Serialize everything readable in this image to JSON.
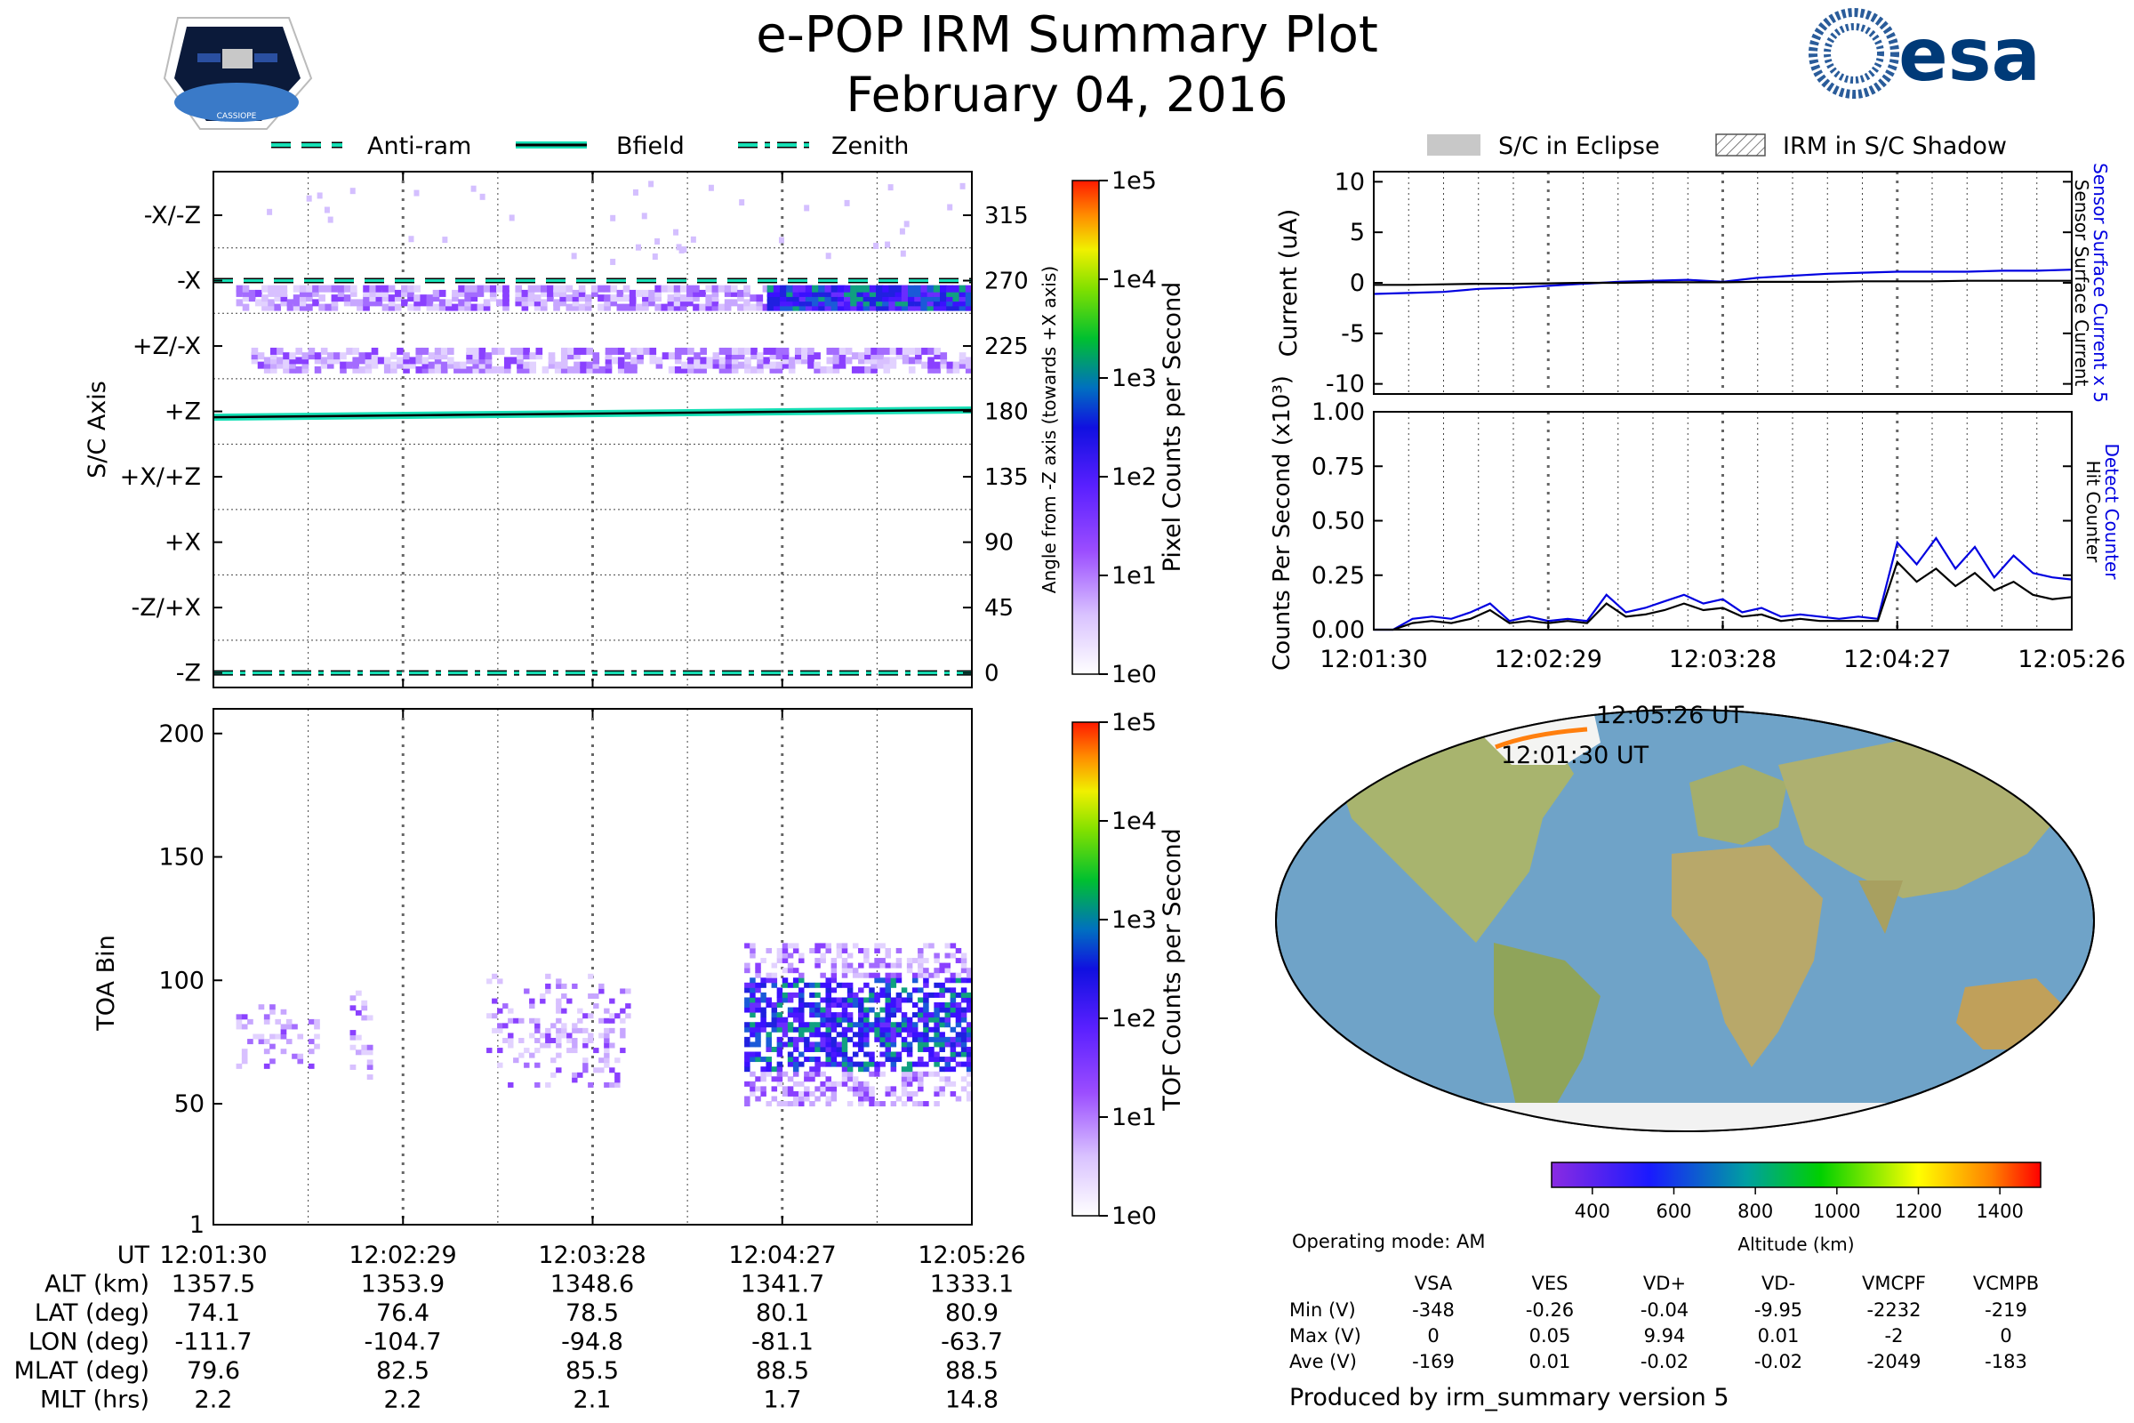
{
  "header": {
    "title": "e-POP IRM Summary Plot",
    "date": "February 04, 2016",
    "mission_badge_text": "CASSIOPE",
    "agency_logo_text": "esa"
  },
  "left_legend": [
    {
      "label": "Anti-ram",
      "style": "dashed"
    },
    {
      "label": "Bfield",
      "style": "solid"
    },
    {
      "label": "Zenith",
      "style": "dashdot"
    }
  ],
  "right_legend": [
    {
      "label": "S/C in Eclipse",
      "style": "filled-grey"
    },
    {
      "label": "IRM in S/C Shadow",
      "style": "hatched"
    }
  ],
  "colors": {
    "reference_line": "#17e0b6",
    "series_blue": "#0000e0",
    "series_black": "#000000",
    "ocean": "#6fa3c8",
    "land": "#9fb06a",
    "track": "#ff7f0e"
  },
  "time_axis": {
    "ticks": [
      "12:01:30",
      "12:02:29",
      "12:03:28",
      "12:04:27",
      "12:05:26"
    ]
  },
  "chart_data": [
    {
      "type": "heatmap",
      "id": "sc-axis",
      "ylabel": "S/C Axis",
      "y2label": "Angle from -Z axis (towards +X axis)",
      "ylim": [
        -10,
        345
      ],
      "y_axis_labels": [
        {
          "label": "-X/-Z",
          "angle": 315
        },
        {
          "label": "-X",
          "angle": 270
        },
        {
          "label": "+Z/-X",
          "angle": 225
        },
        {
          "label": "+Z",
          "angle": 180
        },
        {
          "label": "+X/+Z",
          "angle": 135
        },
        {
          "label": "+X",
          "angle": 90
        },
        {
          "label": "-Z/+X",
          "angle": 45
        },
        {
          "label": "-Z",
          "angle": 0
        }
      ],
      "y2_ticks": [
        315,
        270,
        225,
        180,
        135,
        90,
        45,
        0
      ],
      "colorbar_label": "Pixel Counts per Second",
      "colorbar_ticks": [
        "1e0",
        "1e1",
        "1e2",
        "1e3",
        "1e4",
        "1e5"
      ],
      "reference_lines": [
        {
          "name": "Anti-ram",
          "angle_start": 270,
          "angle_end": 270
        },
        {
          "name": "Bfield",
          "angle_start": 176,
          "angle_end": 181
        },
        {
          "name": "Zenith",
          "angle_start": 0,
          "angle_end": 0
        }
      ],
      "bands": [
        {
          "angle": 258,
          "t_start": 0.03,
          "t_end": 1.0,
          "intensity": "low"
        },
        {
          "angle": 258,
          "t_start": 0.73,
          "t_end": 1.0,
          "intensity": "high"
        },
        {
          "angle": 215,
          "t_start": 0.05,
          "t_end": 1.0,
          "intensity": "low"
        }
      ]
    },
    {
      "type": "heatmap",
      "id": "toa",
      "ylabel": "TOA Bin",
      "ylim": [
        1,
        210
      ],
      "yticks": [
        1,
        50,
        100,
        150,
        200
      ],
      "colorbar_label": "TOF Counts per Second",
      "colorbar_ticks": [
        "1e0",
        "1e1",
        "1e2",
        "1e3",
        "1e4",
        "1e5"
      ],
      "clusters": [
        {
          "t_start": 0.03,
          "t_end": 0.14,
          "bin_center": 78,
          "spread": 8,
          "intensity": "low"
        },
        {
          "t_start": 0.18,
          "t_end": 0.21,
          "bin_center": 80,
          "spread": 12,
          "intensity": "low"
        },
        {
          "t_start": 0.36,
          "t_end": 0.55,
          "bin_center": 80,
          "spread": 14,
          "intensity": "low"
        },
        {
          "t_start": 0.7,
          "t_end": 1.0,
          "bin_center": 82,
          "spread": 20,
          "intensity": "high"
        }
      ]
    },
    {
      "type": "line",
      "id": "current",
      "ylabel": "Current (uA)",
      "ylim": [
        -11,
        11
      ],
      "yticks": [
        10,
        5,
        0,
        -5,
        -10
      ],
      "series": [
        {
          "name": "Sensor Surface Current x 5",
          "color": "#0000e0",
          "values": [
            -1.1,
            -1.0,
            -0.9,
            -0.6,
            -0.5,
            -0.3,
            -0.1,
            0.1,
            0.2,
            0.3,
            0.1,
            0.5,
            0.7,
            0.9,
            1.0,
            1.1,
            1.1,
            1.1,
            1.2,
            1.2,
            1.3
          ]
        },
        {
          "name": "Sensor Surface Current",
          "color": "#000000",
          "values": [
            -0.2,
            -0.2,
            -0.15,
            -0.1,
            -0.1,
            -0.05,
            0.0,
            0.0,
            0.05,
            0.05,
            0.05,
            0.1,
            0.1,
            0.1,
            0.15,
            0.15,
            0.15,
            0.2,
            0.2,
            0.2,
            0.2
          ]
        }
      ]
    },
    {
      "type": "line",
      "id": "counts",
      "ylabel": "Counts Per Second (x10³)",
      "ylim": [
        0,
        1.0
      ],
      "yticks": [
        "1.00",
        "0.75",
        "0.50",
        "0.25",
        "0.00"
      ],
      "series": [
        {
          "name": "Detect Counter",
          "color": "#0000e0",
          "values": [
            0.0,
            0.0,
            0.05,
            0.06,
            0.05,
            0.08,
            0.12,
            0.04,
            0.06,
            0.04,
            0.05,
            0.04,
            0.16,
            0.08,
            0.1,
            0.13,
            0.16,
            0.12,
            0.14,
            0.08,
            0.1,
            0.06,
            0.07,
            0.06,
            0.05,
            0.06,
            0.05,
            0.4,
            0.3,
            0.42,
            0.28,
            0.38,
            0.24,
            0.34,
            0.26,
            0.24,
            0.23
          ]
        },
        {
          "name": "Hit Counter",
          "color": "#000000",
          "values": [
            0.0,
            0.0,
            0.03,
            0.04,
            0.03,
            0.05,
            0.09,
            0.03,
            0.04,
            0.03,
            0.04,
            0.03,
            0.12,
            0.06,
            0.07,
            0.09,
            0.12,
            0.09,
            0.1,
            0.06,
            0.07,
            0.04,
            0.05,
            0.04,
            0.04,
            0.04,
            0.04,
            0.31,
            0.22,
            0.28,
            0.2,
            0.26,
            0.18,
            0.22,
            0.16,
            0.14,
            0.15
          ]
        }
      ]
    }
  ],
  "map": {
    "track_start_label": "12:01:30 UT",
    "track_end_label": "12:05:26 UT",
    "colorbar_label": "Altitude (km)",
    "colorbar_ticks": [
      400,
      600,
      800,
      1000,
      1200,
      1400
    ],
    "colorbar_range": [
      300,
      1500
    ]
  },
  "ephemeris": {
    "rows": [
      {
        "label": "UT",
        "values": [
          "12:01:30",
          "12:02:29",
          "12:03:28",
          "12:04:27",
          "12:05:26"
        ]
      },
      {
        "label": "ALT (km)",
        "values": [
          "1357.5",
          "1353.9",
          "1348.6",
          "1341.7",
          "1333.1"
        ]
      },
      {
        "label": "LAT (deg)",
        "values": [
          "74.1",
          "76.4",
          "78.5",
          "80.1",
          "80.9"
        ]
      },
      {
        "label": "LON (deg)",
        "values": [
          "-111.7",
          "-104.7",
          "-94.8",
          "-81.1",
          "-63.7"
        ]
      },
      {
        "label": "MLAT (deg)",
        "values": [
          "79.6",
          "82.5",
          "85.5",
          "88.5",
          "88.5"
        ]
      },
      {
        "label": "MLT (hrs)",
        "values": [
          "2.2",
          "2.2",
          "2.1",
          "1.7",
          "14.8"
        ]
      }
    ]
  },
  "voltages": {
    "operating_mode": "Operating mode: AM",
    "columns": [
      "VSA",
      "VES",
      "VD+",
      "VD-",
      "VMCPF",
      "VCMPB"
    ],
    "rows": [
      {
        "label": "Min (V)",
        "values": [
          "-348",
          "-0.26",
          "-0.04",
          "-9.95",
          "-2232",
          "-219"
        ]
      },
      {
        "label": "Max (V)",
        "values": [
          "0",
          "0.05",
          "9.94",
          "0.01",
          "-2",
          "0"
        ]
      },
      {
        "label": "Ave (V)",
        "values": [
          "-169",
          "0.01",
          "-0.02",
          "-0.02",
          "-2049",
          "-183"
        ]
      }
    ]
  },
  "footer": "Produced by irm_summary version 5"
}
